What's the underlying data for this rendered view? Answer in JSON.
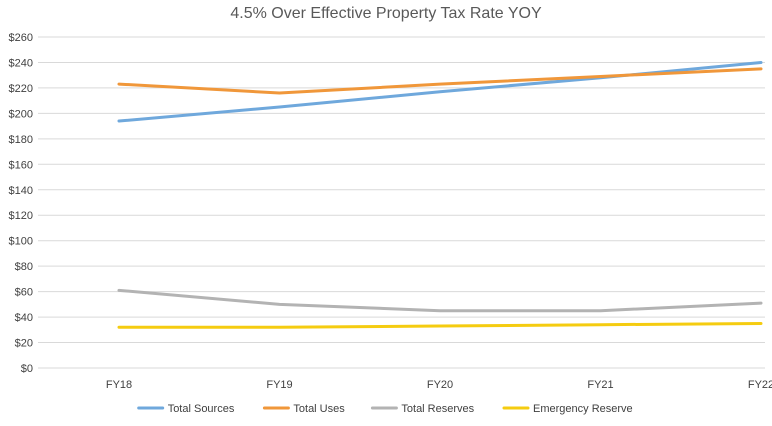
{
  "chart_data": {
    "type": "line",
    "title": "4.5% Over Effective Property Tax Rate YOY",
    "xlabel": "",
    "ylabel": "",
    "categories": [
      "FY18",
      "FY19",
      "FY20",
      "FY21",
      "FY22"
    ],
    "ylim": [
      0,
      260
    ],
    "yticks": [
      0,
      20,
      40,
      60,
      80,
      100,
      120,
      140,
      160,
      180,
      200,
      220,
      240,
      260
    ],
    "ytick_labels": [
      "$0",
      "$20",
      "$40",
      "$60",
      "$80",
      "$100",
      "$120",
      "$140",
      "$160",
      "$180",
      "$200",
      "$220",
      "$240",
      "$260"
    ],
    "grid": true,
    "legend_position": "bottom",
    "series": [
      {
        "name": "Total Sources",
        "color": "#6fa8dc",
        "values": [
          194,
          205,
          217,
          228,
          240
        ]
      },
      {
        "name": "Total Uses",
        "color": "#f0973a",
        "values": [
          223,
          216,
          223,
          229,
          235
        ]
      },
      {
        "name": "Total Reserves",
        "color": "#b3b3b3",
        "values": [
          61,
          50,
          45,
          45,
          51
        ]
      },
      {
        "name": "Emergency Reserve",
        "color": "#f5cc10",
        "values": [
          32,
          32,
          33,
          34,
          35
        ]
      }
    ]
  }
}
